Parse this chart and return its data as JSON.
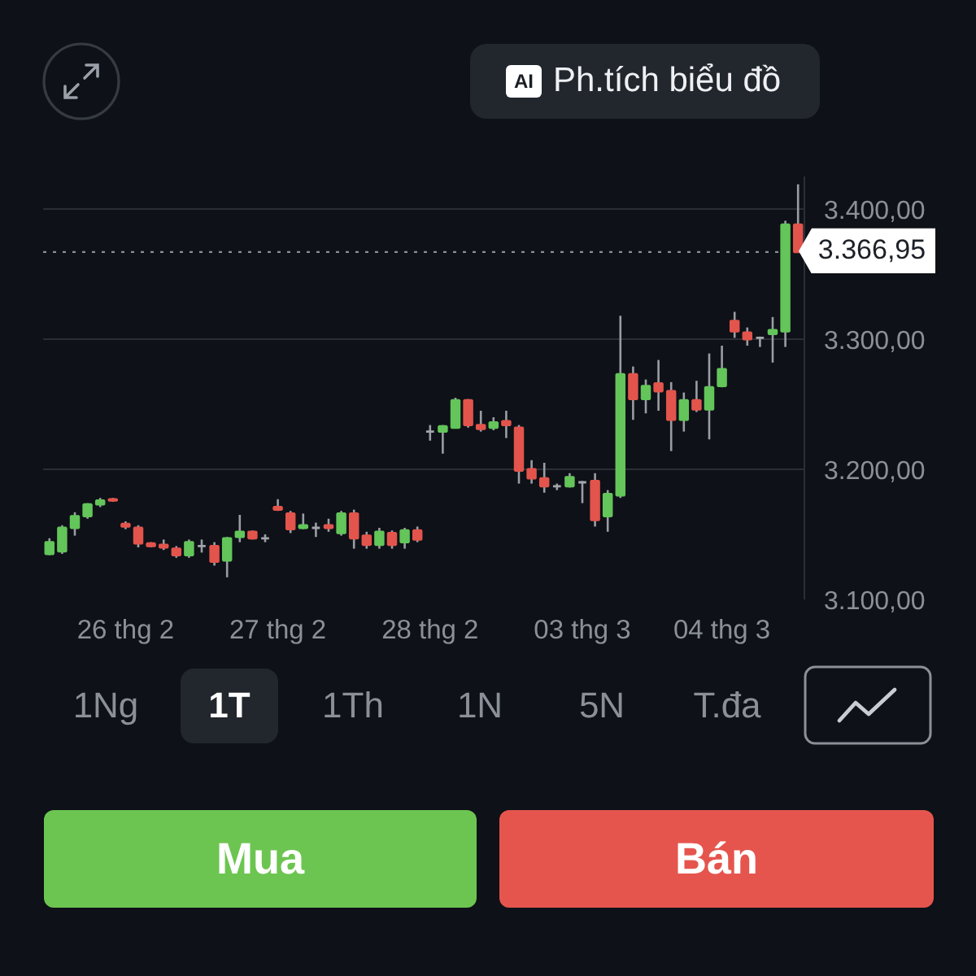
{
  "chart_data": {
    "type": "candlestick",
    "categories": [
      null,
      null,
      null,
      null,
      null,
      null,
      "26 thg 2",
      null,
      null,
      null,
      null,
      null,
      null,
      null,
      null,
      null,
      null,
      null,
      "27 thg 2",
      null,
      null,
      null,
      null,
      null,
      null,
      null,
      null,
      null,
      null,
      null,
      "28 thg 2",
      null,
      null,
      null,
      null,
      null,
      null,
      null,
      null,
      null,
      null,
      null,
      "03 thg 3",
      null,
      null,
      null,
      null,
      null,
      null,
      null,
      null,
      null,
      null,
      "04 thg 3",
      null,
      null,
      null,
      null,
      null,
      null
    ],
    "ohlc": [
      [
        3135,
        3147,
        3134,
        3144
      ],
      [
        3137,
        3157,
        3135,
        3155
      ],
      [
        3155,
        3167,
        3149,
        3164
      ],
      [
        3164,
        3174,
        3162,
        3173
      ],
      [
        3173,
        3178,
        3171,
        3176
      ],
      [
        3177,
        3178,
        3175,
        3176
      ],
      [
        3158,
        3160,
        3154,
        3156
      ],
      [
        3155,
        3157,
        3140,
        3143
      ],
      [
        3143,
        3144,
        3140,
        3141
      ],
      [
        3142,
        3146,
        3138,
        3140
      ],
      [
        3139,
        3141,
        3132,
        3134
      ],
      [
        3134,
        3146,
        3132,
        3144
      ],
      [
        3141,
        3146,
        3136,
        3141
      ],
      [
        3141,
        3144,
        3126,
        3129
      ],
      [
        3130,
        3148,
        3117,
        3147
      ],
      [
        3148,
        3165,
        3144,
        3152
      ],
      [
        3152,
        3153,
        3146,
        3147
      ],
      [
        3147,
        3150,
        3144,
        3147
      ],
      [
        3171,
        3177,
        3168,
        3169
      ],
      [
        3166,
        3168,
        3151,
        3154
      ],
      [
        3155,
        3166,
        3154,
        3157
      ],
      [
        3155,
        3159,
        3148,
        3155
      ],
      [
        3157,
        3162,
        3152,
        3155
      ],
      [
        3151,
        3168,
        3149,
        3166
      ],
      [
        3166,
        3169,
        3139,
        3147
      ],
      [
        3149,
        3152,
        3139,
        3142
      ],
      [
        3142,
        3155,
        3139,
        3152
      ],
      [
        3151,
        3153,
        3139,
        3142
      ],
      [
        3144,
        3155,
        3139,
        3153
      ],
      [
        3153,
        3156,
        3144,
        3146
      ],
      [
        3229,
        3234,
        3222,
        3229
      ],
      [
        3229,
        3234,
        3212,
        3233
      ],
      [
        3232,
        3255,
        3232,
        3253
      ],
      [
        3253,
        3254,
        3232,
        3234
      ],
      [
        3234,
        3245,
        3229,
        3231
      ],
      [
        3232,
        3240,
        3230,
        3236
      ],
      [
        3237,
        3245,
        3224,
        3234
      ],
      [
        3232,
        3234,
        3189,
        3199
      ],
      [
        3200,
        3207,
        3189,
        3193
      ],
      [
        3193,
        3205,
        3182,
        3187
      ],
      [
        3187,
        3189,
        3184,
        3187
      ],
      [
        3187,
        3197,
        3186,
        3194
      ],
      [
        3190,
        3191,
        3174,
        3190
      ],
      [
        3191,
        3197,
        3156,
        3161
      ],
      [
        3164,
        3184,
        3152,
        3181
      ],
      [
        3180,
        3318,
        3178,
        3273
      ],
      [
        3273,
        3279,
        3238,
        3254
      ],
      [
        3254,
        3269,
        3243,
        3264
      ],
      [
        3266,
        3284,
        3245,
        3260
      ],
      [
        3260,
        3267,
        3214,
        3238
      ],
      [
        3238,
        3259,
        3229,
        3253
      ],
      [
        3253,
        3268,
        3244,
        3246
      ],
      [
        3246,
        3289,
        3223,
        3263
      ],
      [
        3264,
        3295,
        3263,
        3277
      ],
      [
        3314,
        3321,
        3301,
        3306
      ],
      [
        3305,
        3309,
        3295,
        3300
      ],
      [
        3301,
        3302,
        3294,
        3301
      ],
      [
        3304,
        3317,
        3282,
        3307
      ],
      [
        3306,
        3391,
        3294,
        3388
      ],
      [
        3388,
        3419,
        3366.95,
        3366.95
      ]
    ],
    "colors": [
      "#63c55a",
      "#63c55a",
      "#63c55a",
      "#63c55a",
      "#63c55a",
      "#e2544c",
      "#e2544c",
      "#e2544c",
      "#e2544c",
      "#e2544c",
      "#e2544c",
      "#63c55a",
      "#a3a6aa",
      "#e2544c",
      "#63c55a",
      "#63c55a",
      "#e2544c",
      "#a3a6aa",
      "#e2544c",
      "#e2544c",
      "#63c55a",
      "#a3a6aa",
      "#e2544c",
      "#63c55a",
      "#e2544c",
      "#e2544c",
      "#63c55a",
      "#e2544c",
      "#63c55a",
      "#e2544c",
      "#a3a6aa",
      "#63c55a",
      "#63c55a",
      "#e2544c",
      "#e2544c",
      "#63c55a",
      "#e2544c",
      "#e2544c",
      "#e2544c",
      "#e2544c",
      "#a3a6aa",
      "#63c55a",
      "#a3a6aa",
      "#e2544c",
      "#63c55a",
      "#63c55a",
      "#e2544c",
      "#63c55a",
      "#e2544c",
      "#e2544c",
      "#63c55a",
      "#e2544c",
      "#63c55a",
      "#63c55a",
      "#e2544c",
      "#e2544c",
      "#a3a6aa",
      "#63c55a",
      "#63c55a",
      "#e2544c"
    ],
    "ylim": [
      3100,
      3425
    ],
    "yticks": [
      {
        "value": 3100,
        "label": "3.100,00"
      },
      {
        "value": 3200,
        "label": "3.200,00"
      },
      {
        "value": 3300,
        "label": "3.300,00"
      },
      {
        "value": 3400,
        "label": "3.400,00"
      }
    ],
    "grid": "y",
    "ref_lines": [
      {
        "axis": "y",
        "value": 3366.95,
        "label": "3.366,95",
        "line_style": "dotted",
        "color": "#8b9098"
      }
    ],
    "annotations": [
      "AI",
      "Ph.tích biểu đồ",
      "1Ng",
      "1T",
      "1Th",
      "1N",
      "5N",
      "T.đa",
      "Mua",
      "Bán"
    ]
  }
}
